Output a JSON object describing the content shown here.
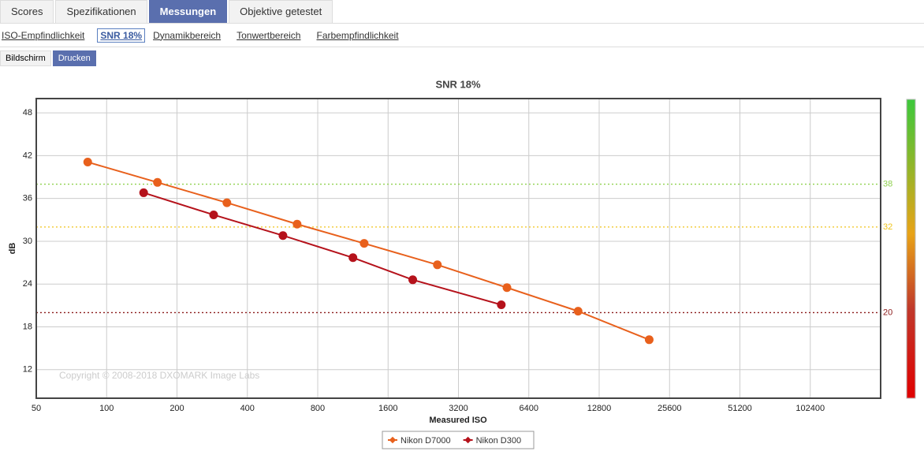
{
  "tabs": {
    "items": [
      "Scores",
      "Spezifikationen",
      "Messungen",
      "Objektive getestet"
    ],
    "active": 2
  },
  "subtabs": {
    "items": [
      "ISO-Empfindlichkeit",
      "SNR 18%",
      "Dynamikbereich",
      "Tonwertbereich",
      "Farbempfindlichkeit"
    ],
    "active": 1
  },
  "buttons": {
    "items": [
      "Bildschirm",
      "Drucken"
    ],
    "active": 1
  },
  "chart_data": {
    "type": "line",
    "title": "SNR 18%",
    "x_label": "Measured ISO",
    "y_label": "dB",
    "copyright": "Copyright © 2008-2018 DXOMARK Image Labs",
    "xscale": "log",
    "xlim": [
      50,
      204800
    ],
    "xticks": [
      50,
      100,
      200,
      400,
      800,
      1600,
      3200,
      6400,
      12800,
      25600,
      51200,
      102400
    ],
    "ylim": [
      8,
      50
    ],
    "yticks": [
      12,
      18,
      24,
      30,
      36,
      42,
      48
    ],
    "grid": true,
    "legend": "bottom",
    "reference_lines": [
      {
        "value": 38,
        "color": "#8fd14f"
      },
      {
        "value": 32,
        "color": "#f0c419"
      },
      {
        "value": 20,
        "color": "#8b1a1a"
      }
    ],
    "series": [
      {
        "name": "Nikon D7000",
        "color": "#e8601c",
        "x": [
          83,
          165,
          327,
          653,
          1264,
          2600,
          5160,
          10400,
          20950
        ],
        "values": [
          41.1,
          38.25,
          35.4,
          32.4,
          29.7,
          26.7,
          23.5,
          20.2,
          16.2
        ]
      },
      {
        "name": "Nikon D300",
        "color": "#b5121b",
        "x": [
          144,
          287,
          568,
          1132,
          2040,
          4880
        ],
        "values": [
          36.8,
          33.7,
          30.8,
          27.7,
          24.6,
          21.1
        ]
      }
    ]
  }
}
